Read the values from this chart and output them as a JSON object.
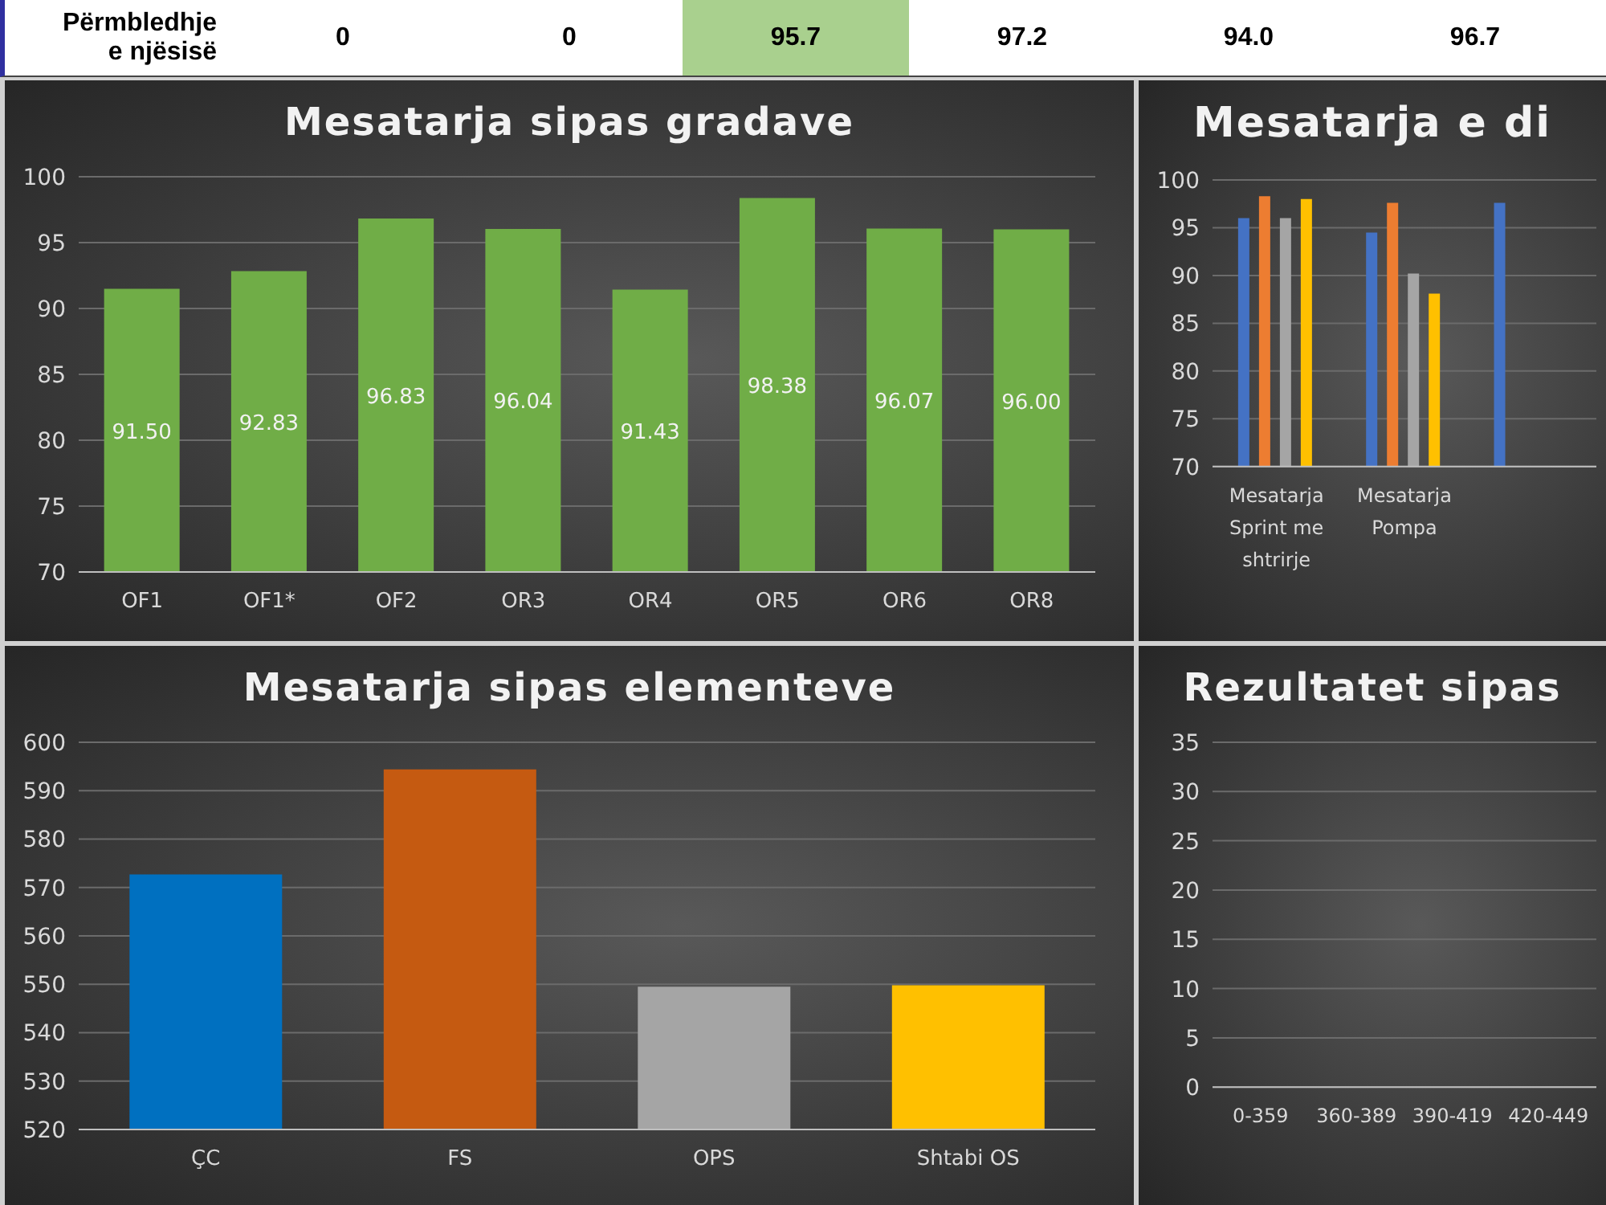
{
  "chart_data": [
    {
      "type": "other",
      "annotations": [
        "Përmbledhje e njësisë",
        "0",
        "0",
        "95.7",
        "97.2",
        "94.0",
        "96.7"
      ],
      "colors": [
        null,
        null,
        null,
        "#a9d08e",
        null,
        null,
        null
      ]
    },
    {
      "type": "bar",
      "title": "Mesatarja sipas gradave",
      "categories": [
        "OF1",
        "OF1*",
        "OF2",
        "OR3",
        "OR4",
        "OR5",
        "OR6",
        "OR8"
      ],
      "values": [
        91.5,
        92.83,
        96.83,
        96.04,
        91.43,
        98.38,
        96.07,
        96.0
      ],
      "value_labels": [
        "91.50",
        "92.83",
        "96.83",
        "96.04",
        "91.43",
        "98.38",
        "96.07",
        "96.00"
      ],
      "color": "#70ad47",
      "ylim": [
        70,
        100
      ],
      "yticks": [
        70,
        75,
        80,
        85,
        90,
        95,
        100
      ],
      "grid": "y"
    },
    {
      "type": "bar",
      "title": "Mesatarja e di",
      "categories": [
        "Mesatarja Sprint me shtrirje",
        "Mesatarja Pompa",
        null
      ],
      "series": [
        {
          "color": "#4472c4",
          "values": [
            96.0,
            94.5,
            97.6
          ]
        },
        {
          "color": "#ed7d31",
          "values": [
            98.3,
            97.6,
            null
          ]
        },
        {
          "color": "#a5a5a5",
          "values": [
            96.0,
            90.2,
            null
          ]
        },
        {
          "color": "#ffc000",
          "values": [
            98.0,
            88.1,
            null
          ]
        }
      ],
      "ylim": [
        70,
        100
      ],
      "yticks": [
        70,
        75,
        80,
        85,
        90,
        95,
        100
      ],
      "grid": "y"
    },
    {
      "type": "bar",
      "title": "Mesatarja sipas elementeve",
      "categories": [
        "ÇC",
        "FS",
        "OPS",
        "Shtabi OS"
      ],
      "values": [
        572.7,
        594.4,
        549.5,
        549.8
      ],
      "colors": [
        "#0070c0",
        "#c55a11",
        "#a5a5a5",
        "#ffc000"
      ],
      "ylim": [
        520,
        600
      ],
      "yticks": [
        520,
        530,
        540,
        550,
        560,
        570,
        580,
        590,
        600
      ],
      "grid": "y"
    },
    {
      "type": "bar",
      "title": "Rezultatet sipas",
      "categories": [
        "0-359",
        "360-389",
        "390-419",
        "420-449"
      ],
      "values": [
        0,
        0,
        0,
        0
      ],
      "ylim": [
        0,
        35
      ],
      "yticks": [
        0,
        5,
        10,
        15,
        20,
        25,
        30,
        35
      ],
      "grid": "y"
    }
  ]
}
